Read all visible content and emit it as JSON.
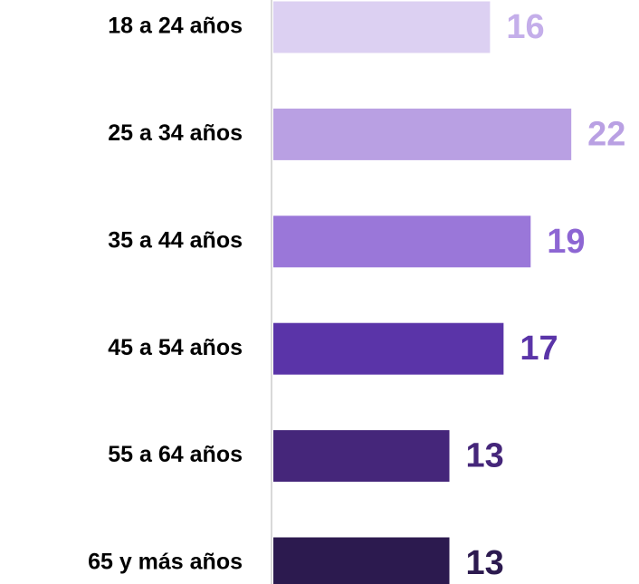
{
  "chart_data": {
    "type": "bar",
    "orientation": "horizontal",
    "categories": [
      "18 a 24 años",
      "25 a 34 años",
      "35 a 44 años",
      "45 a 54 años",
      "55 a 64 años",
      "65 y más años"
    ],
    "values": [
      16,
      22,
      19,
      17,
      13,
      13
    ],
    "colors": [
      "#dcd0f2",
      "#b9a0e3",
      "#9a77d9",
      "#5a34a8",
      "#45267a",
      "#2c1a4f"
    ],
    "label_colors": [
      "#c4aeea",
      "#b9a0e3",
      "#8d66d3",
      "#5a34a8",
      "#45267a",
      "#2c1a4f"
    ],
    "xlim": [
      0,
      27
    ]
  }
}
